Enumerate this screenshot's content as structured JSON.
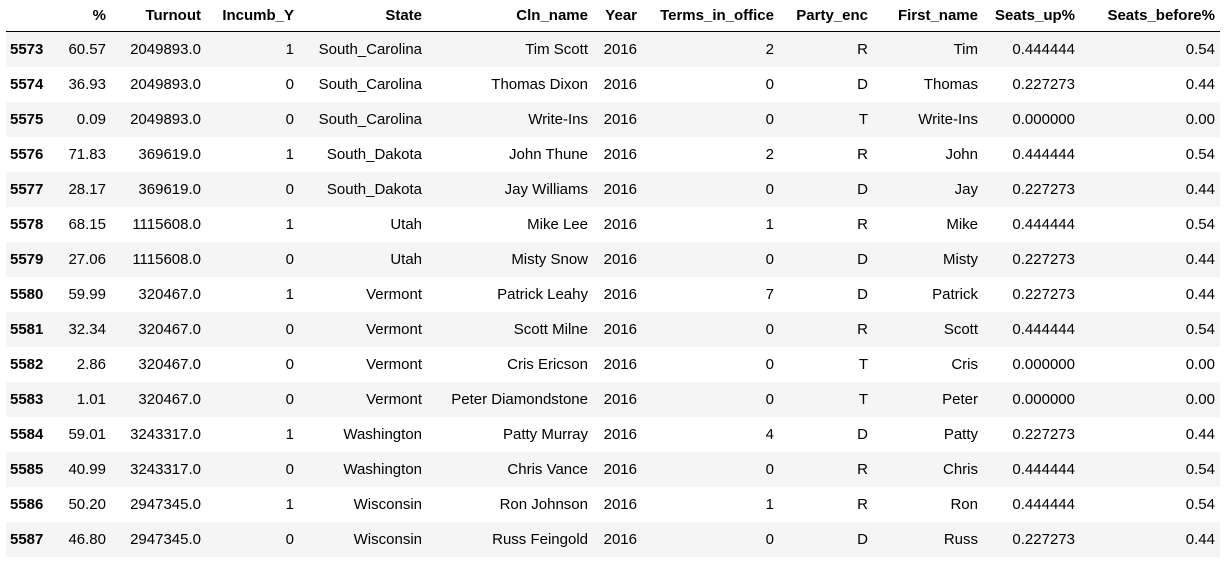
{
  "dataframe": {
    "index_header": "",
    "columns": [
      "%",
      "Turnout",
      "Incumb_Y",
      "State",
      "Cln_name",
      "Year",
      "Terms_in_office",
      "Party_enc",
      "First_name",
      "Seats_up%",
      "Seats_before%"
    ],
    "rows": [
      {
        "index": "5573",
        "cells": [
          "60.57",
          "2049893.0",
          "1",
          "South_Carolina",
          "Tim Scott",
          "2016",
          "2",
          "R",
          "Tim",
          "0.444444",
          "0.54"
        ]
      },
      {
        "index": "5574",
        "cells": [
          "36.93",
          "2049893.0",
          "0",
          "South_Carolina",
          "Thomas Dixon",
          "2016",
          "0",
          "D",
          "Thomas",
          "0.227273",
          "0.44"
        ]
      },
      {
        "index": "5575",
        "cells": [
          "0.09",
          "2049893.0",
          "0",
          "South_Carolina",
          "Write-Ins",
          "2016",
          "0",
          "T",
          "Write-Ins",
          "0.000000",
          "0.00"
        ]
      },
      {
        "index": "5576",
        "cells": [
          "71.83",
          "369619.0",
          "1",
          "South_Dakota",
          "John Thune",
          "2016",
          "2",
          "R",
          "John",
          "0.444444",
          "0.54"
        ]
      },
      {
        "index": "5577",
        "cells": [
          "28.17",
          "369619.0",
          "0",
          "South_Dakota",
          "Jay Williams",
          "2016",
          "0",
          "D",
          "Jay",
          "0.227273",
          "0.44"
        ]
      },
      {
        "index": "5578",
        "cells": [
          "68.15",
          "1115608.0",
          "1",
          "Utah",
          "Mike Lee",
          "2016",
          "1",
          "R",
          "Mike",
          "0.444444",
          "0.54"
        ]
      },
      {
        "index": "5579",
        "cells": [
          "27.06",
          "1115608.0",
          "0",
          "Utah",
          "Misty Snow",
          "2016",
          "0",
          "D",
          "Misty",
          "0.227273",
          "0.44"
        ]
      },
      {
        "index": "5580",
        "cells": [
          "59.99",
          "320467.0",
          "1",
          "Vermont",
          "Patrick Leahy",
          "2016",
          "7",
          "D",
          "Patrick",
          "0.227273",
          "0.44"
        ]
      },
      {
        "index": "5581",
        "cells": [
          "32.34",
          "320467.0",
          "0",
          "Vermont",
          "Scott Milne",
          "2016",
          "0",
          "R",
          "Scott",
          "0.444444",
          "0.54"
        ]
      },
      {
        "index": "5582",
        "cells": [
          "2.86",
          "320467.0",
          "0",
          "Vermont",
          "Cris Ericson",
          "2016",
          "0",
          "T",
          "Cris",
          "0.000000",
          "0.00"
        ]
      },
      {
        "index": "5583",
        "cells": [
          "1.01",
          "320467.0",
          "0",
          "Vermont",
          "Peter Diamondstone",
          "2016",
          "0",
          "T",
          "Peter",
          "0.000000",
          "0.00"
        ]
      },
      {
        "index": "5584",
        "cells": [
          "59.01",
          "3243317.0",
          "1",
          "Washington",
          "Patty Murray",
          "2016",
          "4",
          "D",
          "Patty",
          "0.227273",
          "0.44"
        ]
      },
      {
        "index": "5585",
        "cells": [
          "40.99",
          "3243317.0",
          "0",
          "Washington",
          "Chris Vance",
          "2016",
          "0",
          "R",
          "Chris",
          "0.444444",
          "0.54"
        ]
      },
      {
        "index": "5586",
        "cells": [
          "50.20",
          "2947345.0",
          "1",
          "Wisconsin",
          "Ron Johnson",
          "2016",
          "1",
          "R",
          "Ron",
          "0.444444",
          "0.54"
        ]
      },
      {
        "index": "5587",
        "cells": [
          "46.80",
          "2947345.0",
          "0",
          "Wisconsin",
          "Russ Feingold",
          "2016",
          "0",
          "D",
          "Russ",
          "0.227273",
          "0.44"
        ]
      }
    ]
  }
}
